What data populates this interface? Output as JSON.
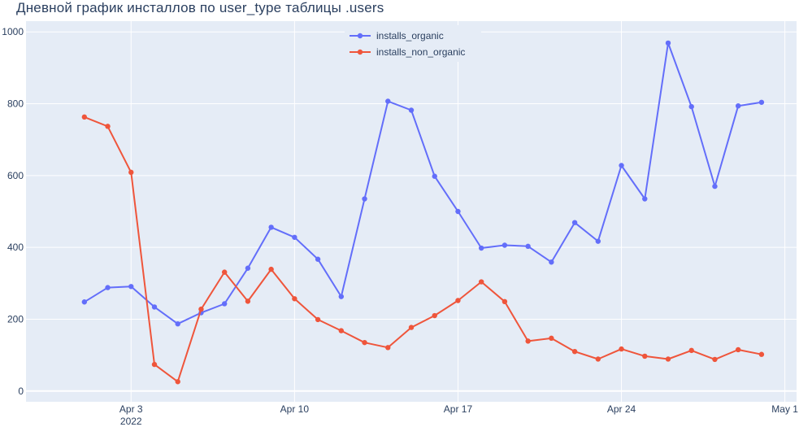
{
  "chart_data": {
    "type": "line",
    "title": "Дневной график инсталлов по user_type таблицы .users",
    "xlabel": "",
    "ylabel": "",
    "x": [
      "2022-04-01",
      "2022-04-02",
      "2022-04-03",
      "2022-04-04",
      "2022-04-05",
      "2022-04-06",
      "2022-04-07",
      "2022-04-08",
      "2022-04-09",
      "2022-04-10",
      "2022-04-11",
      "2022-04-12",
      "2022-04-13",
      "2022-04-14",
      "2022-04-15",
      "2022-04-16",
      "2022-04-17",
      "2022-04-18",
      "2022-04-19",
      "2022-04-20",
      "2022-04-21",
      "2022-04-22",
      "2022-04-23",
      "2022-04-24",
      "2022-04-25",
      "2022-04-26",
      "2022-04-27",
      "2022-04-28",
      "2022-04-29",
      "2022-04-30"
    ],
    "series": [
      {
        "name": "installs_organic",
        "color": "#636efa",
        "values": [
          248,
          288,
          291,
          234,
          187,
          218,
          243,
          342,
          456,
          428,
          367,
          263,
          535,
          807,
          782,
          598,
          500,
          398,
          406,
          403,
          359,
          469,
          417,
          628,
          535,
          969,
          792,
          570,
          794,
          804
        ]
      },
      {
        "name": "installs_non_organic",
        "color": "#ef553b",
        "values": [
          763,
          737,
          609,
          74,
          26,
          228,
          331,
          250,
          339,
          257,
          199,
          168,
          135,
          121,
          177,
          210,
          252,
          304,
          249,
          139,
          147,
          110,
          89,
          117,
          97,
          89,
          113,
          88,
          115,
          102
        ]
      }
    ],
    "ylim": [
      -30,
      1030
    ],
    "xlim": [
      "2022-03-29 12:00",
      "2022-05-01 12:00"
    ],
    "xticks": [
      {
        "date": "2022-04-03",
        "label": "Apr 3",
        "sublabel": "2022"
      },
      {
        "date": "2022-04-10",
        "label": "Apr 10"
      },
      {
        "date": "2022-04-17",
        "label": "Apr 17"
      },
      {
        "date": "2022-04-24",
        "label": "Apr 24"
      },
      {
        "date": "2022-05-01",
        "label": "May 1"
      }
    ],
    "yticks": [
      0,
      200,
      400,
      600,
      800,
      1000
    ],
    "grid": true,
    "legend_position": "top-center",
    "plot_background": "#e5ecf6"
  }
}
